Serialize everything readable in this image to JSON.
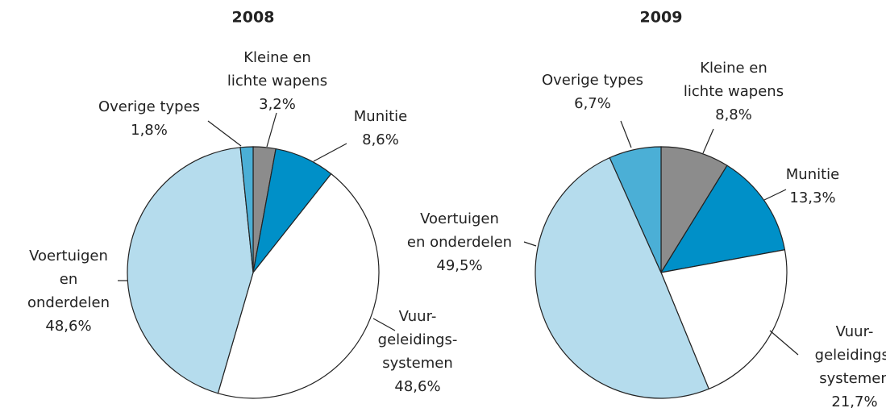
{
  "chart_data": [
    {
      "type": "pie",
      "title": "2008",
      "categories": [
        "Kleine en\nlichte wapens",
        "Munitie",
        "Vuur-\ngeleidings-\nsystemen",
        "Voertuigen\nen\nonderdelen",
        "Overige types"
      ],
      "values": [
        3.2,
        8.6,
        48.6,
        48.6,
        1.8
      ],
      "value_labels": [
        "3,2%",
        "8,6%",
        "48,6%",
        "48,6%",
        "1,8%"
      ],
      "colors": [
        "#8c8c8c",
        "#0090c8",
        "#ffffff",
        "#b5dced",
        "#4bafd6"
      ]
    },
    {
      "type": "pie",
      "title": "2009",
      "categories": [
        "Kleine en\nlichte wapens",
        "Munitie",
        "Vuur-\ngeleidings-\nsystemen",
        "Voertuigen\nen onderdelen",
        "Overige types"
      ],
      "values": [
        8.8,
        13.3,
        21.7,
        49.5,
        6.7
      ],
      "value_labels": [
        "8,8%",
        "13,3%",
        "21,7%",
        "49,5%",
        "6,7%"
      ],
      "colors": [
        "#8c8c8c",
        "#0090c8",
        "#ffffff",
        "#b5dced",
        "#4bafd6"
      ]
    }
  ]
}
